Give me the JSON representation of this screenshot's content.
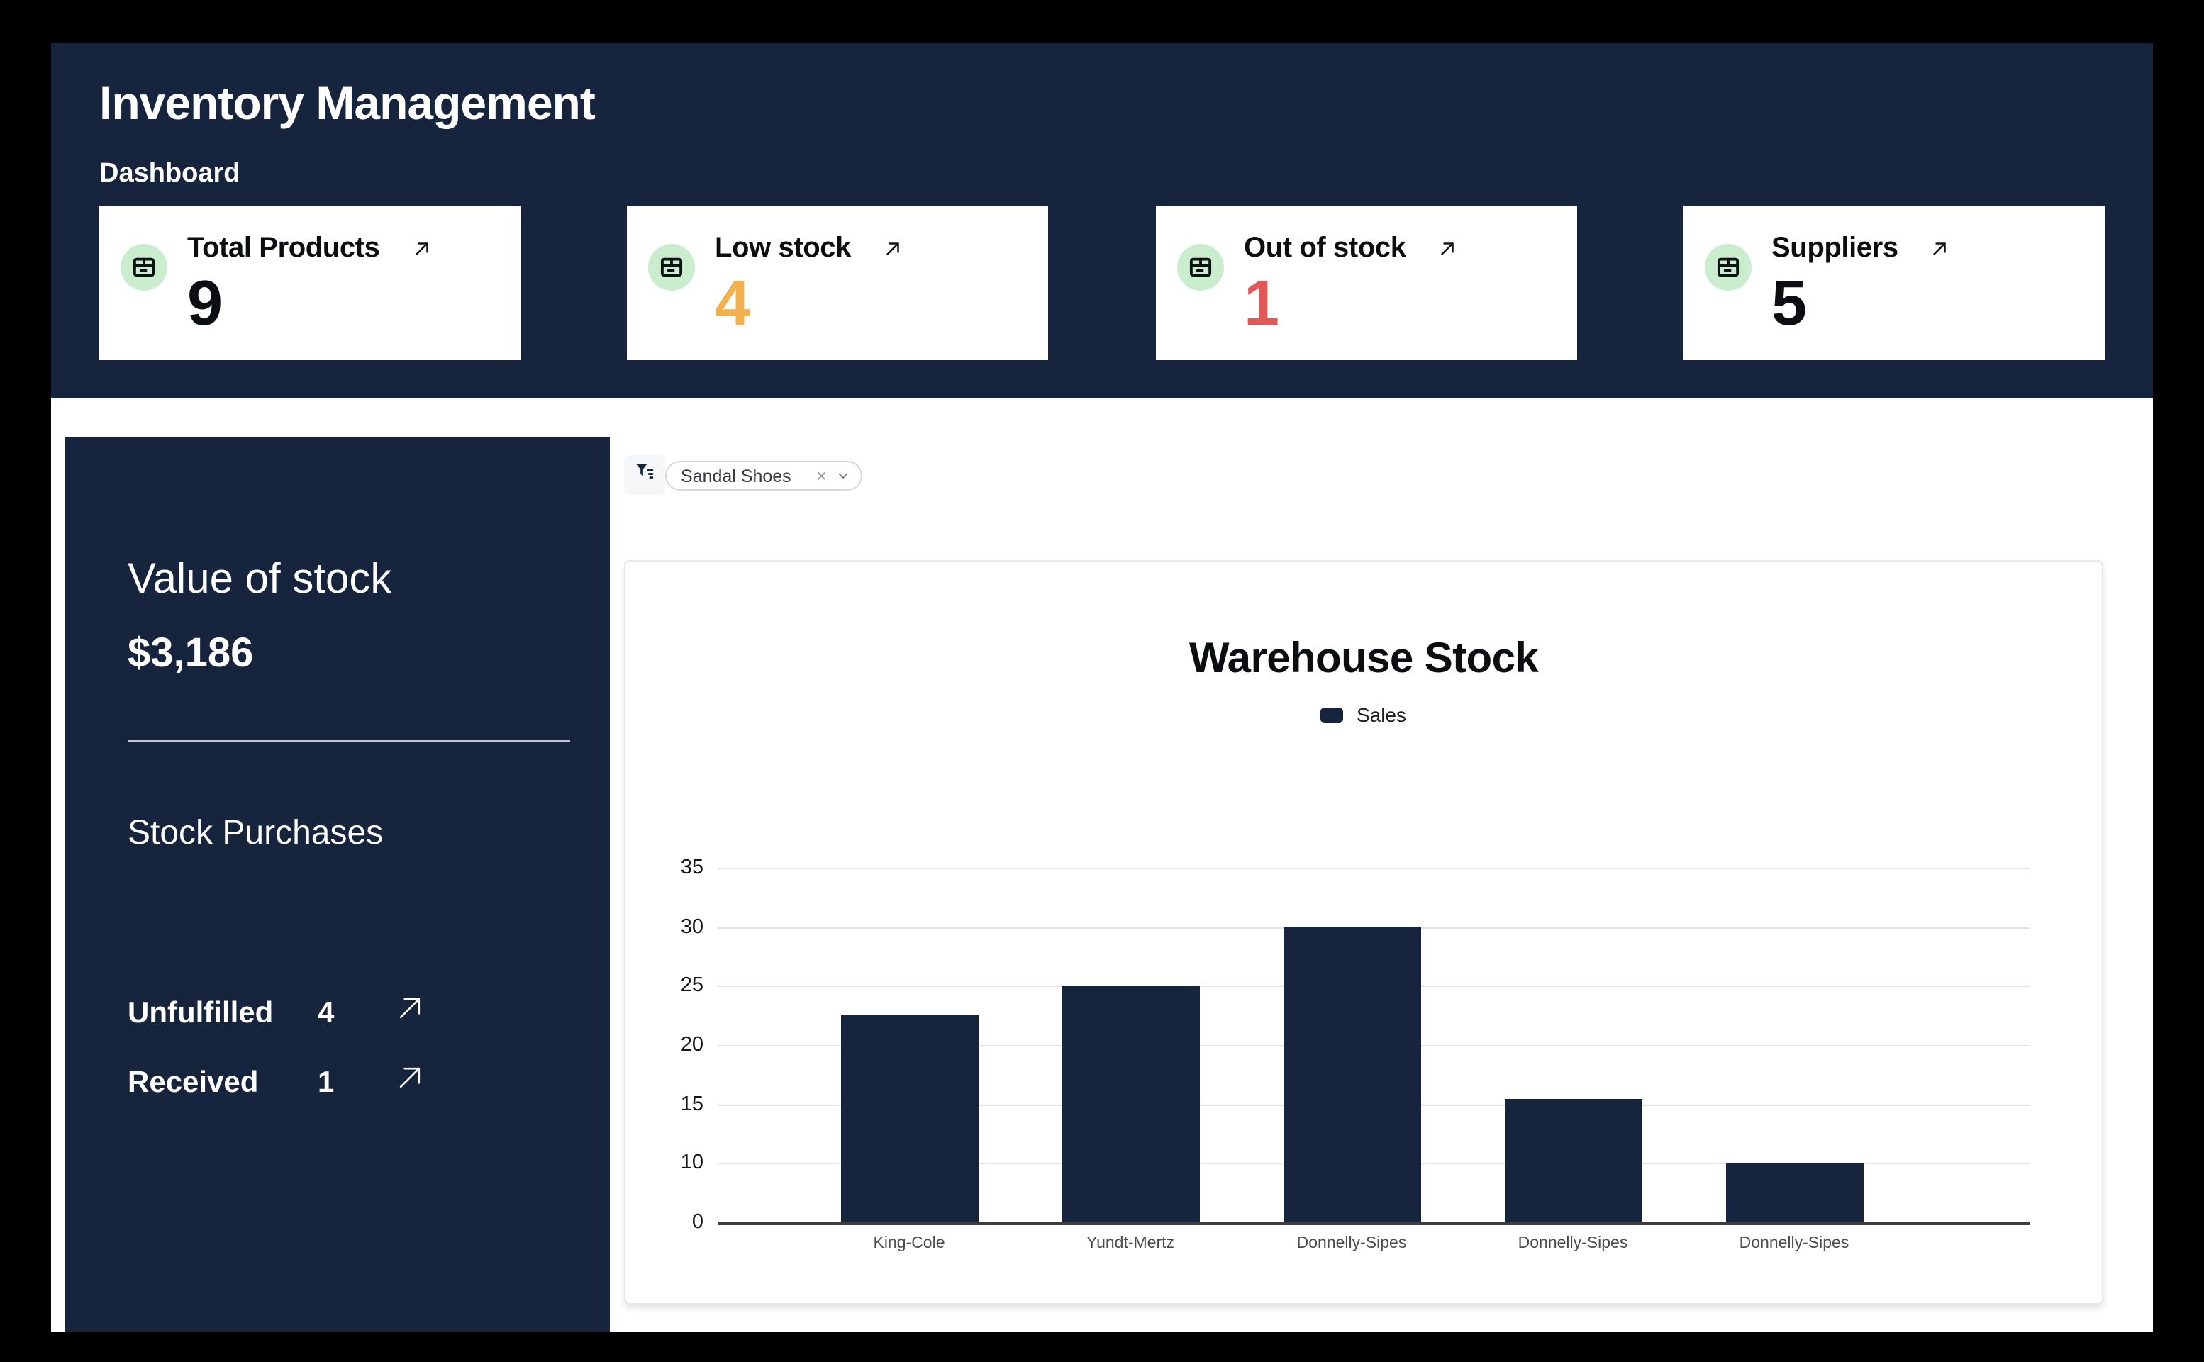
{
  "header": {
    "title": "Inventory Management",
    "subtitle": "Dashboard"
  },
  "stats": [
    {
      "label": "Total Products",
      "value": "9",
      "value_color": "#0C0D10",
      "icon": "box-icon",
      "link_icon": "arrow-up-right-icon"
    },
    {
      "label": "Low stock",
      "value": "4",
      "value_color": "#F0B14E",
      "icon": "box-icon",
      "link_icon": "arrow-up-right-icon"
    },
    {
      "label": "Out of stock",
      "value": "1",
      "value_color": "#E25757",
      "icon": "box-icon",
      "link_icon": "arrow-up-right-icon"
    },
    {
      "label": "Suppliers",
      "value": "5",
      "value_color": "#0C0D10",
      "icon": "box-icon",
      "link_icon": "arrow-up-right-icon"
    }
  ],
  "sidebar": {
    "value_of_stock_label": "Value of stock",
    "value_of_stock": "$3,186",
    "purchases_label": "Stock Purchases",
    "rows": [
      {
        "label": "Unfulfilled",
        "value": "4",
        "link_icon": "arrow-up-right-icon"
      },
      {
        "label": "Received",
        "value": "1",
        "link_icon": "arrow-up-right-icon"
      }
    ]
  },
  "filter": {
    "icon": "filter-funnel-icon",
    "chip_label": "Sandal Shoes",
    "remove_glyph": "×",
    "caret_icon": "chevron-down-icon"
  },
  "chart_data": {
    "type": "bar",
    "title": "Warehouse Stock",
    "legend": [
      {
        "label": "Sales",
        "color": "#16243D"
      }
    ],
    "legend_position": "top",
    "categories": [
      "King-Cole",
      "Yundt-Mertz",
      "Donnelly-Sipes",
      "Donnelly-Sipes",
      "Donnelly-Sipes"
    ],
    "values": [
      22.5,
      25,
      30,
      15.5,
      10
    ],
    "y_tick_labels": [
      35,
      30,
      25,
      20,
      15,
      10,
      0
    ],
    "ylim": [
      0,
      35
    ],
    "grid": true,
    "xlabel": "",
    "ylabel": ""
  },
  "colors": {
    "background": "#000000",
    "panel_navy": "#16243D",
    "bar_navy": "#16243D",
    "badge_green": "#C9EDCD",
    "warning_orange": "#F0B14E",
    "danger_red": "#E25757",
    "card_white": "#FFFFFF",
    "gridline_gray": "#E3E3E3"
  }
}
